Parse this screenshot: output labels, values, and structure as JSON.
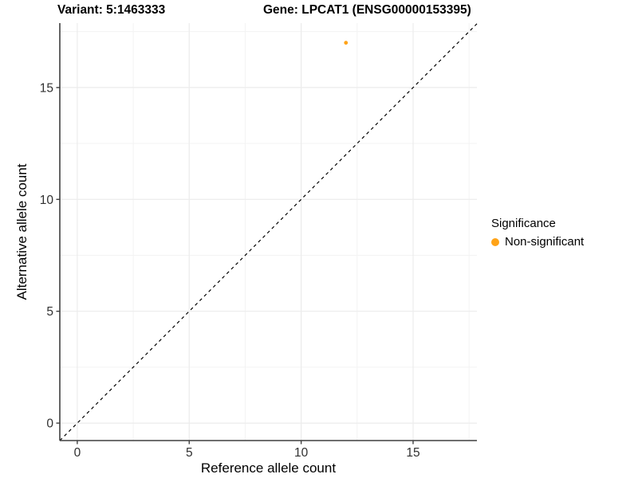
{
  "chart_data": {
    "type": "scatter",
    "title_left": "Variant: 5:1463333",
    "title_right": "Gene: LPCAT1 (ENSG00000153395)",
    "xlabel": "Reference allele count",
    "ylabel": "Alternative allele count",
    "xlim": [
      -0.78,
      17.85
    ],
    "ylim": [
      -0.78,
      17.88
    ],
    "x_ticks": [
      0,
      5,
      10,
      15
    ],
    "y_ticks": [
      0,
      5,
      10,
      15
    ],
    "x_minor_ticks": [
      2.5,
      7.5,
      12.5,
      17.5
    ],
    "y_minor_ticks": [
      2.5,
      7.5,
      12.5,
      17.5
    ],
    "grid": true,
    "series": [
      {
        "name": "Non-significant",
        "color": "#FFA318",
        "points": [
          {
            "x": 12,
            "y": 17
          }
        ]
      }
    ],
    "reference_line": {
      "type": "identity y=x",
      "style": "dashed",
      "color": "#000000"
    },
    "legend": {
      "position": "right",
      "title": "Significance",
      "items": [
        {
          "label": "Non-significant",
          "color": "#FFA318"
        }
      ]
    },
    "colors": {
      "axis_line": "#3f3f3f",
      "tick_label": "#303030",
      "grid_major": "#ececec",
      "grid_minor": "#f3f3f3",
      "background": "#ffffff"
    }
  }
}
